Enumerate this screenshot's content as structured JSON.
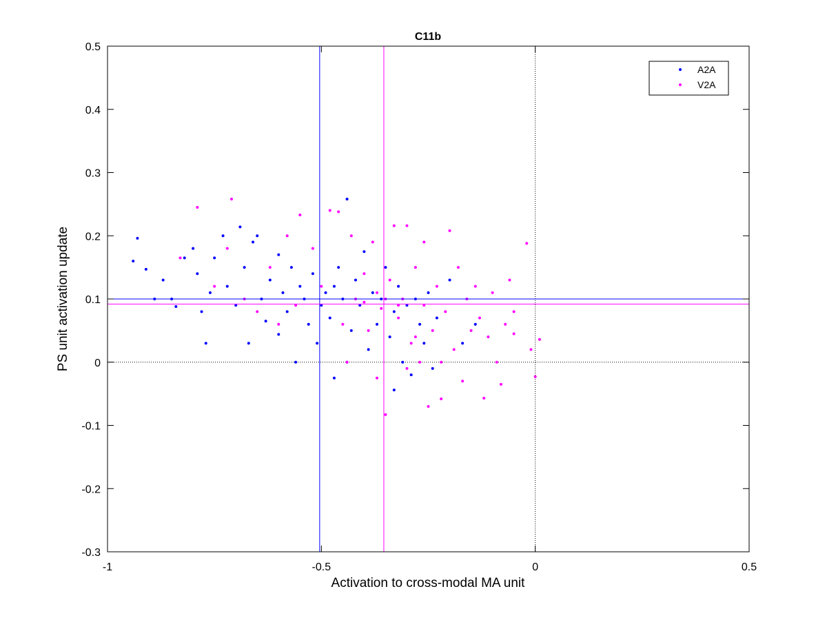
{
  "chart_data": {
    "type": "scatter",
    "title": "C11b",
    "xlabel": "Activation to cross-modal MA unit",
    "ylabel": "PS unit activation update",
    "xlim": [
      -1,
      0.5
    ],
    "xticks": [
      -1,
      -0.5,
      0,
      0.5
    ],
    "ylim": [
      -0.3,
      0.5
    ],
    "yticks": [
      -0.3,
      -0.2,
      -0.1,
      0,
      0.1,
      0.2,
      0.3,
      0.4,
      0.5
    ],
    "legend": "upper right",
    "zero_lines": true,
    "series": [
      {
        "name": "A2A",
        "color": "#0000ff",
        "mean_x": -0.504,
        "mean_y": 0.1,
        "x": [
          -0.93,
          -0.94,
          -0.91,
          -0.89,
          -0.87,
          -0.85,
          -0.84,
          -0.82,
          -0.8,
          -0.79,
          -0.78,
          -0.77,
          -0.76,
          -0.75,
          -0.73,
          -0.72,
          -0.7,
          -0.69,
          -0.68,
          -0.67,
          -0.66,
          -0.65,
          -0.64,
          -0.63,
          -0.62,
          -0.6,
          -0.6,
          -0.59,
          -0.58,
          -0.57,
          -0.56,
          -0.55,
          -0.54,
          -0.53,
          -0.52,
          -0.51,
          -0.5,
          -0.49,
          -0.48,
          -0.47,
          -0.46,
          -0.45,
          -0.44,
          -0.43,
          -0.42,
          -0.41,
          -0.4,
          -0.39,
          -0.38,
          -0.37,
          -0.36,
          -0.35,
          -0.34,
          -0.33,
          -0.32,
          -0.31,
          -0.3,
          -0.29,
          -0.28,
          -0.27,
          -0.26,
          -0.25,
          -0.24,
          -0.23,
          -0.2,
          -0.17,
          -0.14,
          -0.47,
          -0.33,
          -0.44
        ],
        "y": [
          0.196,
          0.16,
          0.147,
          0.1,
          0.13,
          0.1,
          0.088,
          0.165,
          0.18,
          0.14,
          0.08,
          0.03,
          0.11,
          0.165,
          0.2,
          0.12,
          0.09,
          0.214,
          0.15,
          0.03,
          0.19,
          0.2,
          0.1,
          0.065,
          0.13,
          0.17,
          0.044,
          0.11,
          0.08,
          0.15,
          0.0,
          0.12,
          0.1,
          0.06,
          0.14,
          0.03,
          0.09,
          0.11,
          0.07,
          0.12,
          0.15,
          0.1,
          0.258,
          0.05,
          0.13,
          0.09,
          0.175,
          0.02,
          0.11,
          0.06,
          0.1,
          0.15,
          0.04,
          0.08,
          0.12,
          0.0,
          0.09,
          -0.02,
          0.1,
          0.06,
          0.03,
          0.11,
          -0.01,
          0.07,
          0.13,
          0.03,
          0.06,
          -0.025,
          -0.044,
          0.0
        ]
      },
      {
        "name": "V2A",
        "color": "#ff00ff",
        "mean_x": -0.354,
        "mean_y": 0.092,
        "x": [
          -0.79,
          -0.71,
          -0.83,
          -0.75,
          -0.72,
          -0.68,
          -0.65,
          -0.62,
          -0.58,
          -0.55,
          -0.52,
          -0.5,
          -0.48,
          -0.46,
          -0.45,
          -0.43,
          -0.42,
          -0.4,
          -0.39,
          -0.38,
          -0.37,
          -0.36,
          -0.35,
          -0.34,
          -0.33,
          -0.32,
          -0.31,
          -0.3,
          -0.29,
          -0.28,
          -0.27,
          -0.26,
          -0.25,
          -0.24,
          -0.23,
          -0.22,
          -0.21,
          -0.2,
          -0.19,
          -0.18,
          -0.17,
          -0.16,
          -0.15,
          -0.14,
          -0.13,
          -0.12,
          -0.11,
          -0.1,
          -0.09,
          -0.08,
          -0.07,
          -0.06,
          -0.05,
          -0.05,
          -0.02,
          -0.01,
          0,
          0.01,
          -0.56,
          -0.6,
          -0.44,
          -0.37,
          -0.3,
          -0.26,
          -0.22,
          -0.35,
          -0.4,
          -0.32,
          -0.28
        ],
        "y": [
          0.245,
          0.258,
          0.165,
          0.12,
          0.18,
          0.1,
          0.08,
          0.15,
          0.2,
          0.233,
          0.18,
          0.12,
          0.24,
          0.238,
          0.06,
          0.2,
          0.1,
          0.14,
          0.05,
          0.19,
          0.11,
          0.085,
          -0.083,
          0.13,
          0.216,
          0.07,
          0.1,
          0.216,
          0.03,
          0.15,
          0.0,
          0.09,
          -0.07,
          0.05,
          0.12,
          -0.058,
          0.08,
          0.208,
          0.02,
          0.15,
          -0.03,
          0.1,
          0.05,
          0.12,
          0.07,
          -0.057,
          0.04,
          0.11,
          0.0,
          -0.035,
          0.06,
          0.13,
          0.045,
          0.08,
          0.188,
          0.02,
          -0.023,
          0.036,
          0.09,
          0.06,
          0.0,
          -0.025,
          -0.01,
          0.19,
          0.0,
          0.1,
          0.095,
          0.09,
          0.04
        ]
      }
    ]
  }
}
